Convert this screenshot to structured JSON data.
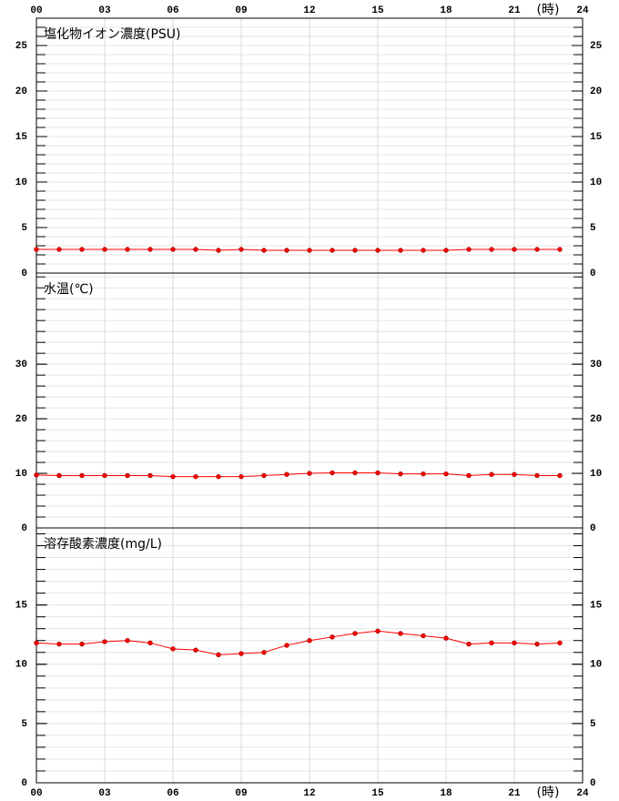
{
  "x_axis": {
    "xlim": [
      0,
      24
    ],
    "xticks": [
      {
        "value": 0,
        "label": "00"
      },
      {
        "value": 3,
        "label": "03"
      },
      {
        "value": 6,
        "label": "06"
      },
      {
        "value": 9,
        "label": "09"
      },
      12,
      15,
      18,
      21,
      24
    ],
    "label": "(時)"
  },
  "chart_data": [
    {
      "type": "line",
      "title": "塩化物イオン濃度(PSU)",
      "color": "#ff0000",
      "grid": true,
      "x": [
        0,
        1,
        2,
        3,
        4,
        5,
        6,
        7,
        8,
        9,
        10,
        11,
        12,
        13,
        14,
        15,
        16,
        17,
        18,
        19,
        20,
        21,
        22,
        23
      ],
      "values": [
        2.6,
        2.6,
        2.6,
        2.6,
        2.6,
        2.6,
        2.6,
        2.6,
        2.5,
        2.6,
        2.5,
        2.5,
        2.5,
        2.5,
        2.5,
        2.5,
        2.5,
        2.5,
        2.5,
        2.6,
        2.6,
        2.6,
        2.6,
        2.6
      ],
      "ylim": [
        0,
        28
      ],
      "yticks": [
        0,
        5,
        10,
        15,
        20,
        25
      ],
      "yminor_step": 1
    },
    {
      "type": "line",
      "title": "水温(℃)",
      "color": "#ff0000",
      "grid": true,
      "x": [
        0,
        1,
        2,
        3,
        4,
        5,
        6,
        7,
        8,
        9,
        10,
        11,
        12,
        13,
        14,
        15,
        16,
        17,
        18,
        19,
        20,
        21,
        22,
        23
      ],
      "values": [
        9.7,
        9.6,
        9.6,
        9.6,
        9.6,
        9.6,
        9.4,
        9.4,
        9.4,
        9.4,
        9.6,
        9.8,
        10.0,
        10.1,
        10.1,
        10.1,
        9.9,
        9.9,
        9.9,
        9.6,
        9.8,
        9.8,
        9.6,
        9.6
      ],
      "ylim": [
        0,
        46.7
      ],
      "yticks": [
        0,
        10,
        20,
        30
      ],
      "yminor_step": 2
    },
    {
      "type": "line",
      "title": "溶存酸素濃度(mg/L)",
      "color": "#ff0000",
      "grid": true,
      "x": [
        0,
        1,
        2,
        3,
        4,
        5,
        6,
        7,
        8,
        9,
        10,
        11,
        12,
        13,
        14,
        15,
        16,
        17,
        18,
        19,
        20,
        21,
        22,
        23
      ],
      "values": [
        11.8,
        11.7,
        11.7,
        11.9,
        12.0,
        11.8,
        11.3,
        11.2,
        10.8,
        10.9,
        11.0,
        11.6,
        12.0,
        12.3,
        12.6,
        12.8,
        12.6,
        12.4,
        12.2,
        11.7,
        11.8,
        11.8,
        11.7,
        11.8
      ],
      "ylim": [
        0,
        21.5
      ],
      "yticks": [
        0,
        5,
        10,
        15
      ],
      "yminor_step": 1
    }
  ]
}
